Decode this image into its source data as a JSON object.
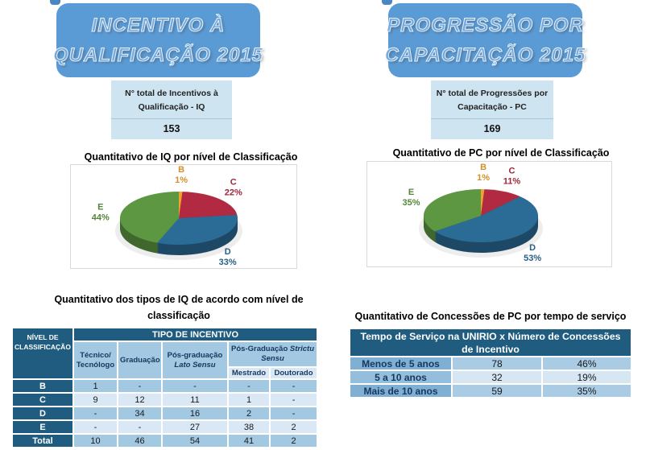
{
  "left": {
    "title_line1": "INCENTIVO À",
    "title_line2": "QUALIFICAÇÃO 2015",
    "total_box": {
      "label_line1": "N° total de Incentivos à",
      "label_line2": "Qualificação - IQ",
      "value": "153"
    },
    "chart_heading": "Quantitativo de IQ por nível de Classificação",
    "table_heading_line1": "Quantitativo dos tipos de IQ de acordo com nível de",
    "table_heading_line2": "classificação"
  },
  "right": {
    "title_line1": "PROGRESSÃO POR",
    "title_line2": "CAPACITAÇÃO 2015",
    "total_box": {
      "label_line1": "N° total de Progressões por",
      "label_line2": "Capacitação - PC",
      "value": "169"
    },
    "chart_heading": "Quantitativo de PC por nível de Classificação",
    "table_heading": "Quantitativo de Concessões de PC por tempo de serviço"
  },
  "chart_data": [
    {
      "type": "pie",
      "style": "3d",
      "title": "Quantitativo de IQ por nível de Classificação",
      "categories": [
        "B",
        "C",
        "D",
        "E"
      ],
      "values": [
        1,
        22,
        33,
        44
      ],
      "unit": "%",
      "colors": [
        "#F0A22E",
        "#B22A42",
        "#2A6C96",
        "#5E9742"
      ],
      "label_format": "category + percent",
      "legend_position": "outside-data-labels"
    },
    {
      "type": "pie",
      "style": "3d",
      "title": "Quantitativo de PC por nível de Classificação",
      "categories": [
        "B",
        "C",
        "D",
        "E"
      ],
      "values": [
        1,
        11,
        53,
        35
      ],
      "unit": "%",
      "colors": [
        "#F0A22E",
        "#B22A42",
        "#2A6C96",
        "#5E9742"
      ],
      "label_format": "category + percent",
      "legend_position": "outside-data-labels"
    }
  ],
  "iq_table": {
    "corner_header": "NÍVEL DE CLASSIFICAÇÃO",
    "group_header": "TIPO DE INCENTIVO",
    "col_tecnico": "Técnico/ Tecnólogo",
    "col_graduacao": "Graduação",
    "col_pos_lato_normal": "Pós-graduação",
    "col_pos_lato_italic": "Lato Sensu",
    "col_pos_strictu_normal": "Pós-Graduação ",
    "col_pos_strictu_italic": "Strictu Sensu",
    "sub_mestrado": "Mestrado",
    "sub_doutorado": "Doutorado",
    "rows": [
      {
        "label": "B",
        "values": [
          "1",
          "-",
          "-",
          "-",
          "-"
        ]
      },
      {
        "label": "C",
        "values": [
          "9",
          "12",
          "11",
          "1",
          "-"
        ]
      },
      {
        "label": "D",
        "values": [
          "-",
          "34",
          "16",
          "2",
          "-"
        ]
      },
      {
        "label": "E",
        "values": [
          "-",
          "-",
          "27",
          "38",
          "2"
        ]
      },
      {
        "label": "Total",
        "values": [
          "10",
          "46",
          "54",
          "41",
          "2"
        ]
      }
    ]
  },
  "pc_table": {
    "header": "Tempo de Serviço na UNIRIO x Número de Concessões de Incentivo",
    "rows": [
      {
        "label": "Menos de 5 anos",
        "count": "78",
        "percent": "46%"
      },
      {
        "label": "5 a 10 anos",
        "count": "32",
        "percent": "19%"
      },
      {
        "label": "Mais de 10 anos",
        "count": "59",
        "percent": "35%"
      }
    ]
  },
  "colors": {
    "accent_blue": "#5B9BD5",
    "table_header_blue": "#1F5C7F",
    "row_mid_blue": "#A3C8E2",
    "row_light_blue": "#D9E8F4",
    "info_box_bg": "#CEE4F1"
  }
}
